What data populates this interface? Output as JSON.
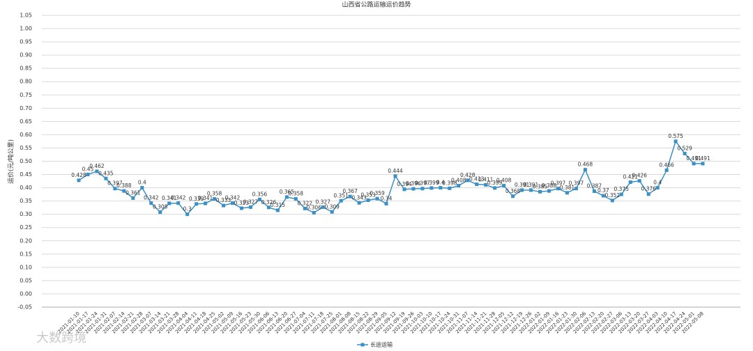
{
  "chart_data": {
    "type": "line",
    "title": "山西省公路运输运价趋势",
    "y_label": "运价(元/吨公里)",
    "categories": [
      "2021-01-10",
      "2021-01-17",
      "2021-01-24",
      "2021-01-31",
      "2021-02-07",
      "2021-02-14",
      "2021-02-21",
      "2021-02-28",
      "2021-03-07",
      "2021-03-14",
      "2021-03-21",
      "2021-03-28",
      "2021-04-04",
      "2021-04-11",
      "2021-04-18",
      "2021-04-25",
      "2021-05-02",
      "2021-05-09",
      "2021-05-16",
      "2021-05-23",
      "2021-05-30",
      "2021-06-06",
      "2021-06-13",
      "2021-06-20",
      "2021-06-27",
      "2021-07-04",
      "2021-07-11",
      "2021-07-18",
      "2021-07-25",
      "2021-08-01",
      "2021-08-08",
      "2021-08-15",
      "2021-08-22",
      "2021-08-29",
      "2021-09-05",
      "2021-09-12",
      "2021-09-19",
      "2021-09-26",
      "2021-10-03",
      "2021-10-10",
      "2021-10-17",
      "2021-10-24",
      "2021-10-31",
      "2021-11-07",
      "2021-11-14",
      "2021-11-21",
      "2021-11-28",
      "2021-12-05",
      "2021-12-12",
      "2021-12-19",
      "2021-12-26",
      "2022-01-02",
      "2022-01-09",
      "2022-01-16",
      "2022-01-23",
      "2022-01-30",
      "2022-02-06",
      "2022-02-13",
      "2022-02-20",
      "2022-02-27",
      "2022-03-06",
      "2022-03-13",
      "2022-03-20",
      "2022-03-27",
      "2022-04-03",
      "2022-04-10",
      "2022-04-17",
      "2022-04-24",
      "2022-05-01",
      "2022-05-08"
    ],
    "series": [
      {
        "name": "长途运输",
        "color": "#3a8fc4",
        "values": [
          0.428,
          0.45,
          0.462,
          0.435,
          0.397,
          0.388,
          0.361,
          0.4,
          0.342,
          0.308,
          0.341,
          0.342,
          0.3,
          0.339,
          0.341,
          0.358,
          0.333,
          0.342,
          0.323,
          0.327,
          0.356,
          0.326,
          0.315,
          0.365,
          0.358,
          0.322,
          0.306,
          0.327,
          0.309,
          0.351,
          0.367,
          0.343,
          0.353,
          0.359,
          0.34,
          0.444,
          0.394,
          0.396,
          0.397,
          0.399,
          0.4,
          0.398,
          0.408,
          0.428,
          0.413,
          0.411,
          0.399,
          0.408,
          0.368,
          0.391,
          0.391,
          0.385,
          0.388,
          0.397,
          0.381,
          0.397,
          0.468,
          0.387,
          0.37,
          0.352,
          0.375,
          0.421,
          0.426,
          0.376,
          0.4,
          0.466,
          0.575,
          0.529,
          0.491,
          0.491
        ]
      }
    ],
    "ylim": [
      -0.05,
      1.05
    ],
    "yticks": [
      -0.05,
      {
        "value": 0,
        "label": "0.00"
      },
      0.05,
      {
        "value": 0.1,
        "label": "0.10"
      },
      0.15,
      {
        "value": 0.2,
        "label": "0.20"
      },
      0.25,
      {
        "value": 0.3,
        "label": "0.30"
      },
      0.35,
      {
        "value": 0.4,
        "label": "0.40"
      },
      0.45,
      {
        "value": 0.5,
        "label": "0.50"
      },
      0.55,
      {
        "value": 0.6,
        "label": "0.60"
      },
      0.65,
      {
        "value": 0.7,
        "label": "0.70"
      },
      0.75,
      {
        "value": 0.8,
        "label": "0.80"
      },
      0.85,
      {
        "value": 0.9,
        "label": "0.90"
      },
      0.95,
      {
        "value": 1,
        "label": "1.00"
      },
      1.05
    ],
    "grid": true,
    "legend": "bottom",
    "watermark": "大数跨境"
  }
}
